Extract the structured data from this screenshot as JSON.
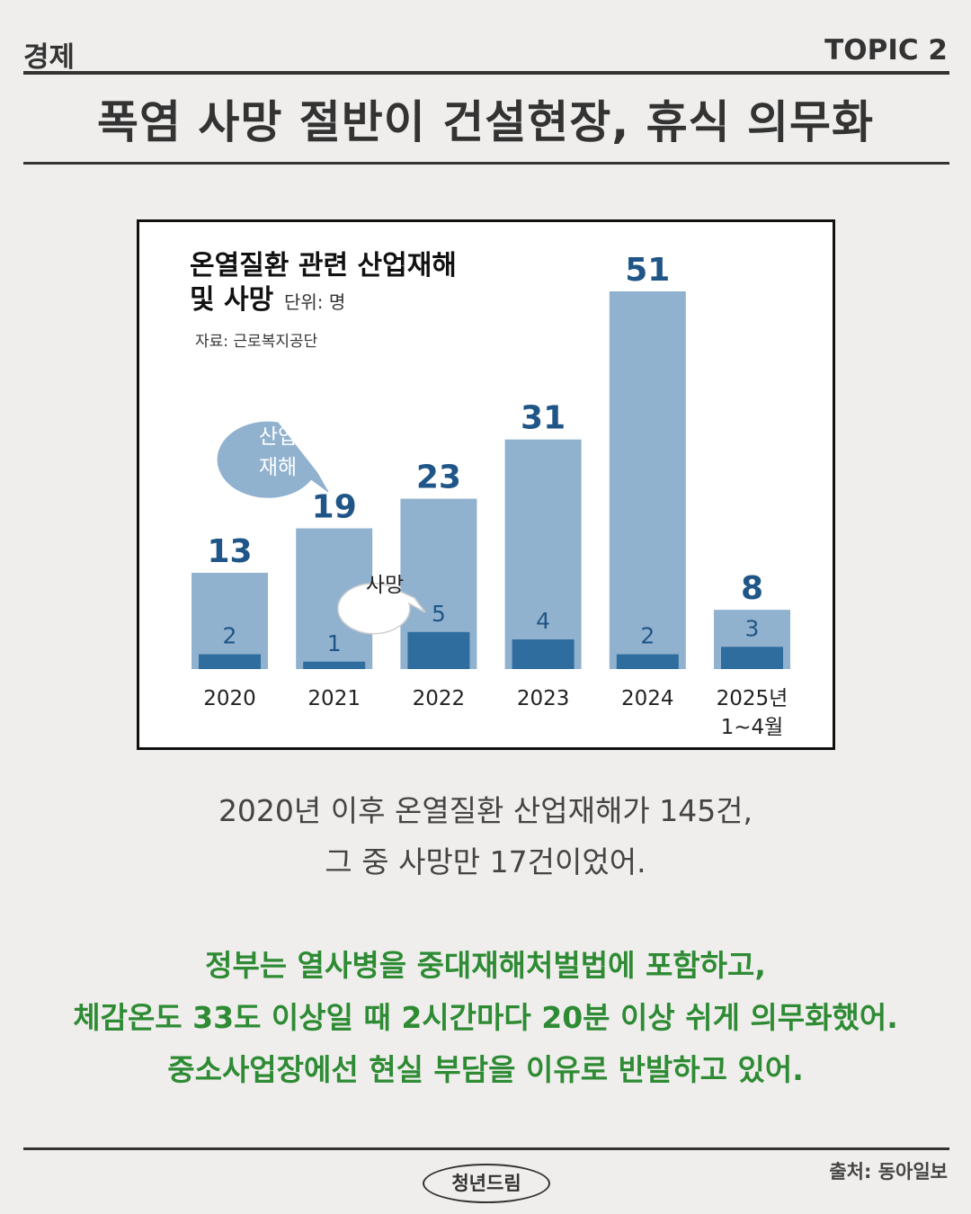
{
  "header": {
    "category": "경제",
    "topic": "TOPIC 2",
    "headline": "폭염 사망 절반이 건설현장, 휴식 의무화"
  },
  "chart_data": {
    "type": "bar",
    "title_line1": "온열질환 관련 산업재해",
    "title_line2": "및 사망",
    "unit": "단위: 명",
    "source": "자료: 근로복지공단",
    "categories": [
      "2020",
      "2021",
      "2022",
      "2023",
      "2024",
      "2025년"
    ],
    "category_sub": [
      "",
      "",
      "",
      "",
      "",
      "1~4월"
    ],
    "series": [
      {
        "name": "산업재해",
        "values": [
          13,
          19,
          23,
          31,
          51,
          8
        ],
        "color": "#91b2cf",
        "label_color": "#1f5687"
      },
      {
        "name": "사망",
        "values": [
          2,
          1,
          5,
          4,
          2,
          3
        ],
        "color": "#2e6d9d",
        "label_color": "#1f5687"
      }
    ],
    "callouts": {
      "injury": [
        "산업",
        "재해"
      ],
      "death": "사망"
    },
    "ylim": [
      0,
      51
    ]
  },
  "body": {
    "caption_line1": "2020년 이후 온열질환 산업재해가 145건,",
    "caption_line2": "그 중 사망만 17건이었어.",
    "note_line1": "정부는 열사병을 중대재해처벌법에 포함하고,",
    "note_line2": "체감온도 33도 이상일 때 2시간마다 20분 이상 쉬게 의무화했어.",
    "note_line3": "중소사업장에선 현실 부담을 이유로 반발하고 있어."
  },
  "footer": {
    "brand": "청년드림",
    "source": "출처: 동아일보"
  }
}
